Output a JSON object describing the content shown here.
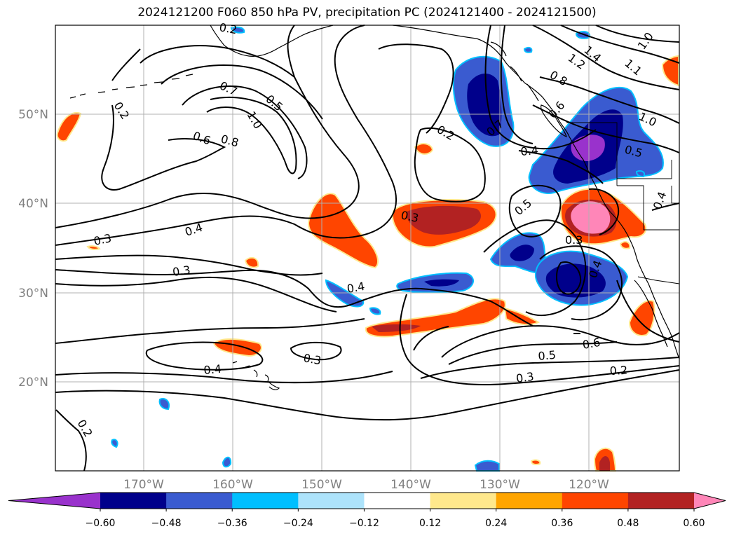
{
  "title": "2024121200 F060 850 hPa PV, precipitation PC (2024121400 - 2024121500)",
  "map": {
    "projection": "PlateCarree",
    "lon_range": [
      -180,
      -110
    ],
    "lat_range": [
      10,
      60
    ],
    "lon_ticks": [
      "170°W",
      "160°W",
      "150°W",
      "140°W",
      "130°W",
      "120°W"
    ],
    "lat_ticks": [
      "20°N",
      "30°N",
      "40°N",
      "50°N"
    ],
    "grid": true,
    "coastlines": true,
    "state_borders": true
  },
  "contour_labels": [
    "0.2",
    "0.7",
    "0.6",
    "0.8",
    "1.0",
    "0.5",
    "0.3",
    "0.4",
    "0.3",
    "0.2",
    "0.3",
    "0.4",
    "0.2",
    "1.4",
    "1.2",
    "1.0",
    "0.8",
    "1.1",
    "0.6",
    "0.7",
    "0.4",
    "1.0",
    "0.5",
    "0.5",
    "0.3",
    "0.4",
    "0.6",
    "0.5",
    "0.3",
    "0.2",
    "0.4",
    "0.3",
    "0.2",
    "0.4"
  ],
  "colorbar": {
    "ticks": [
      "−0.60",
      "−0.48",
      "−0.36",
      "−0.24",
      "−0.12",
      "0.12",
      "0.24",
      "0.36",
      "0.48",
      "0.60"
    ],
    "colors": [
      "#9932cc",
      "#00008b",
      "#3a5bd0",
      "#00bfff",
      "#ade3fb",
      "#ffffff",
      "#ffe88c",
      "#ffa500",
      "#ff4500",
      "#b22222",
      "#ff86b8"
    ],
    "extend": "both"
  },
  "colors": {
    "contour": "#000000",
    "grid": "#b0b0b0",
    "land_edge": "#000000"
  }
}
